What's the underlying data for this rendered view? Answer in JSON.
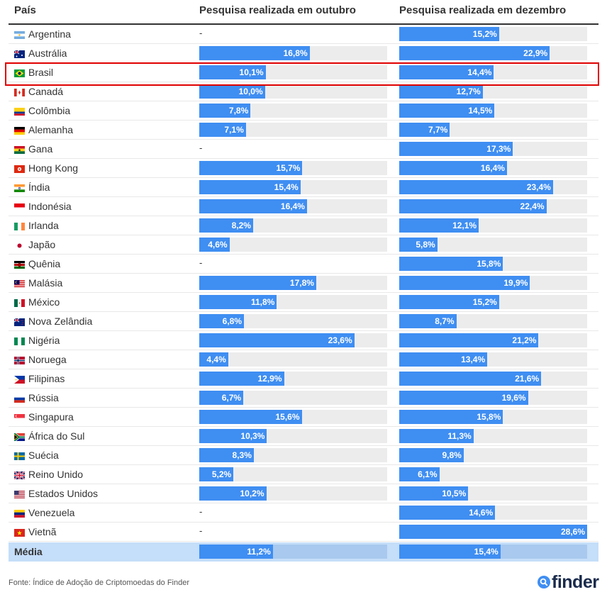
{
  "chart_data": {
    "type": "bar",
    "headers": {
      "country": "País",
      "october": "Pesquisa realizada em outubro",
      "december": "Pesquisa realizada em dezembro"
    },
    "scale_max": 28.6,
    "highlighted": "Brasil",
    "categories": [
      "Argentina",
      "Austrália",
      "Brasil",
      "Canadá",
      "Colômbia",
      "Alemanha",
      "Gana",
      "Hong Kong",
      "Índia",
      "Indonésia",
      "Irlanda",
      "Japão",
      "Quênia",
      "Malásia",
      "México",
      "Nova Zelândia",
      "Nigéria",
      "Noruega",
      "Filipinas",
      "Rússia",
      "Singapura",
      "África do Sul",
      "Suécia",
      "Reino Unido",
      "Estados Unidos",
      "Venezuela",
      "Vietnã"
    ],
    "series": [
      {
        "name": "Pesquisa realizada em outubro",
        "values": [
          null,
          16.8,
          10.1,
          10.0,
          7.8,
          7.1,
          null,
          15.7,
          15.4,
          16.4,
          8.2,
          4.6,
          null,
          17.8,
          11.8,
          6.8,
          23.6,
          4.4,
          12.9,
          6.7,
          15.6,
          10.3,
          8.3,
          5.2,
          10.2,
          null,
          null
        ],
        "labels": [
          "-",
          "16,8%",
          "10,1%",
          "10,0%",
          "7,8%",
          "7,1%",
          "-",
          "15,7%",
          "15,4%",
          "16,4%",
          "8,2%",
          "4,6%",
          "-",
          "17,8%",
          "11,8%",
          "6,8%",
          "23,6%",
          "4,4%",
          "12,9%",
          "6,7%",
          "15,6%",
          "10,3%",
          "8,3%",
          "5,2%",
          "10,2%",
          "-",
          "-"
        ]
      },
      {
        "name": "Pesquisa realizada em dezembro",
        "values": [
          15.2,
          22.9,
          14.4,
          12.7,
          14.5,
          7.7,
          17.3,
          16.4,
          23.4,
          22.4,
          12.1,
          5.8,
          15.8,
          19.9,
          15.2,
          8.7,
          21.2,
          13.4,
          21.6,
          19.6,
          15.8,
          11.3,
          9.8,
          6.1,
          10.5,
          14.6,
          28.6
        ],
        "labels": [
          "15,2%",
          "22,9%",
          "14,4%",
          "12,7%",
          "14,5%",
          "7,7%",
          "17,3%",
          "16,4%",
          "23,4%",
          "22,4%",
          "12,1%",
          "5,8%",
          "15,8%",
          "19,9%",
          "15,2%",
          "8,7%",
          "21,2%",
          "13,4%",
          "21,6%",
          "19,6%",
          "15,8%",
          "11,3%",
          "9,8%",
          "6,1%",
          "10,5%",
          "14,6%",
          "28,6%"
        ]
      }
    ],
    "average": {
      "label": "Média",
      "values": [
        11.2,
        15.4
      ],
      "labels": [
        "11,2%",
        "15,4%"
      ]
    }
  },
  "flags": [
    "argentina-flag",
    "australia-flag",
    "brazil-flag",
    "canada-flag",
    "colombia-flag",
    "germany-flag",
    "ghana-flag",
    "hong-kong-flag",
    "india-flag",
    "indonesia-flag",
    "ireland-flag",
    "japan-flag",
    "kenya-flag",
    "malaysia-flag",
    "mexico-flag",
    "new-zealand-flag",
    "nigeria-flag",
    "norway-flag",
    "philippines-flag",
    "russia-flag",
    "singapore-flag",
    "south-africa-flag",
    "sweden-flag",
    "uk-flag",
    "usa-flag",
    "venezuela-flag",
    "vietnam-flag"
  ],
  "colors": {
    "bar": "#3f8ef2",
    "track": "#ececec",
    "average_row": "#c5def9",
    "average_track": "#a9c9ee",
    "highlight": "#e00000"
  },
  "footer": {
    "source": "Fonte: Índice de Adoção de Criptomoedas do Finder",
    "logo_text": "finder",
    "logo_icon": "search-icon"
  }
}
